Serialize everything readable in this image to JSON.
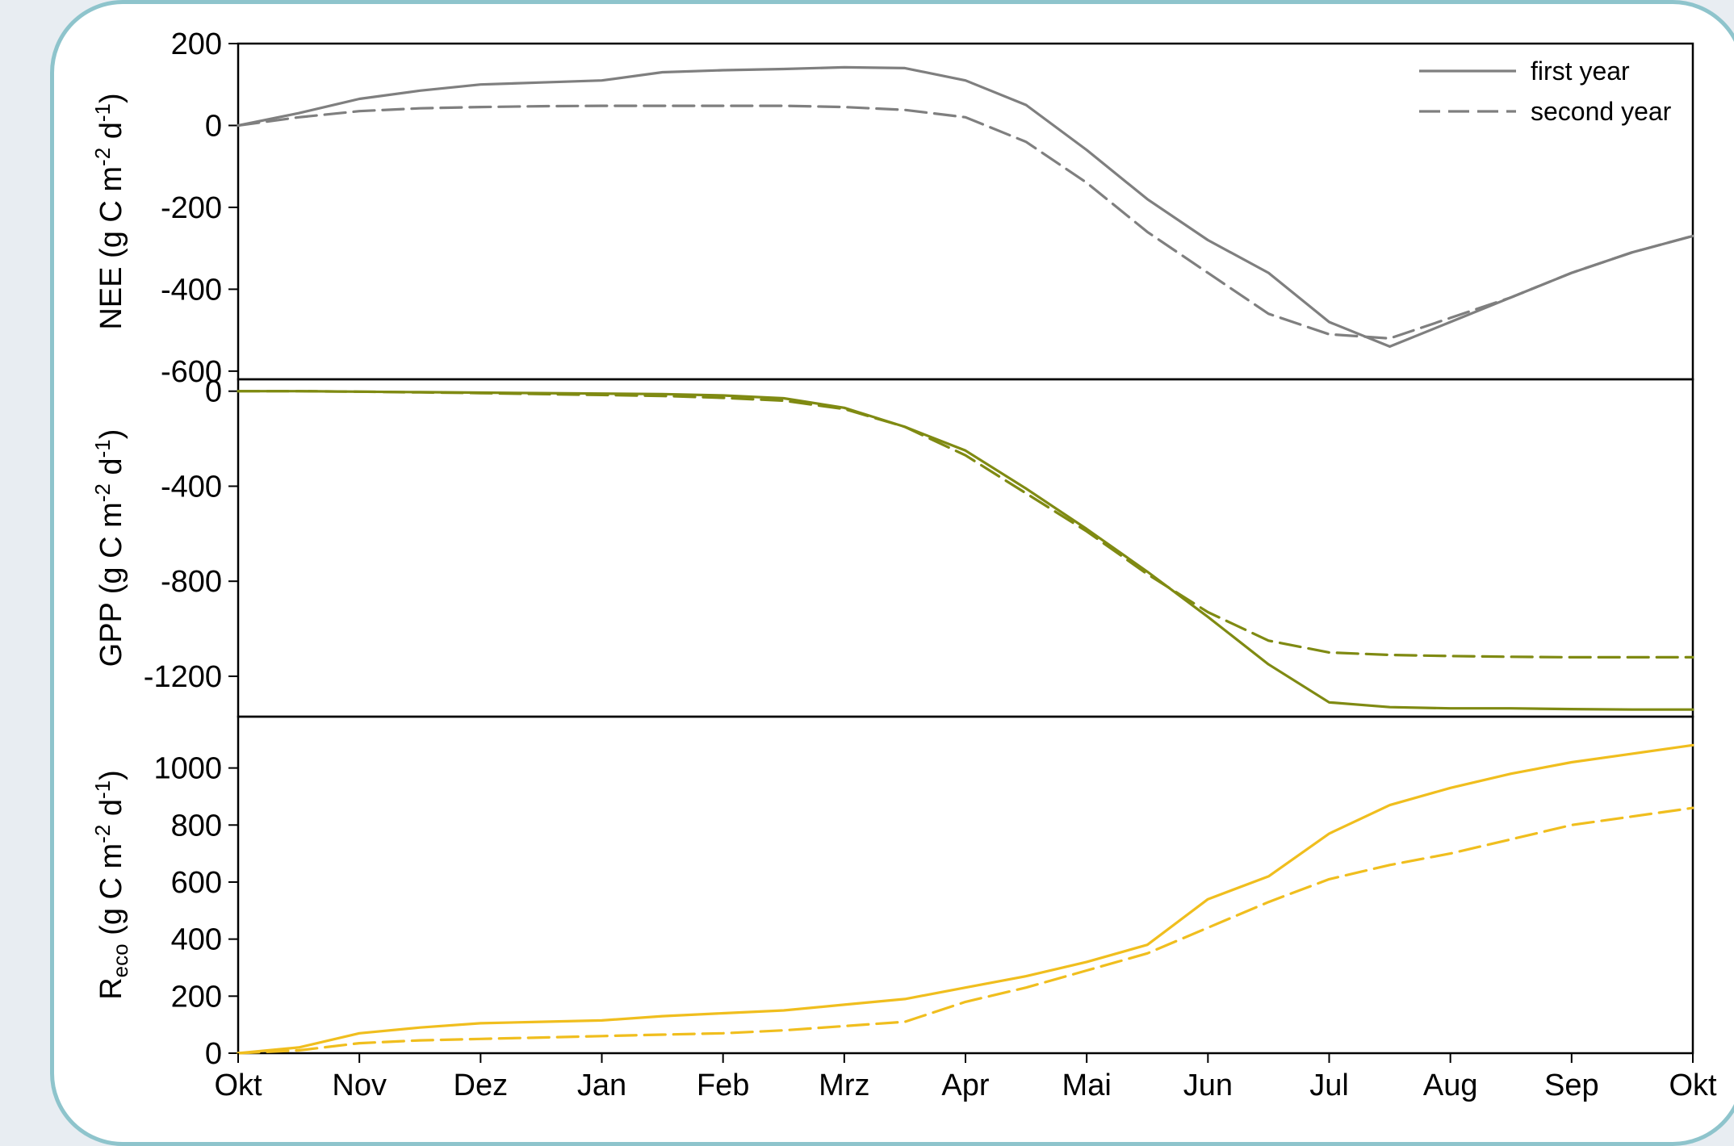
{
  "chart_data": {
    "type": "line",
    "x_categories": [
      "Okt",
      "Nov",
      "Dez",
      "Jan",
      "Feb",
      "Mrz",
      "Apr",
      "Mai",
      "Jun",
      "Jul",
      "Aug",
      "Sep",
      "Okt"
    ],
    "legend": {
      "entries": [
        "first year",
        "second year"
      ],
      "placement": "top-right"
    },
    "panels": [
      {
        "id": "nee",
        "ylabel": {
          "main": "NEE (g C m",
          "sup1": "-2",
          "mid": " d",
          "sup2": "-1",
          "end": ")"
        },
        "ylim": [
          -620,
          200
        ],
        "yticks": [
          200,
          0,
          -200,
          -400,
          -600
        ],
        "color": "#7f7f7f",
        "series": [
          {
            "name": "first year",
            "style": "solid",
            "x": [
              0,
              0.5,
              1,
              1.5,
              2,
              2.5,
              3,
              3.5,
              4,
              4.5,
              5,
              5.5,
              6,
              6.5,
              7,
              7.5,
              8,
              8.5,
              9,
              9.5,
              10,
              10.5,
              11,
              11.5,
              12
            ],
            "y": [
              0,
              30,
              65,
              85,
              100,
              105,
              110,
              130,
              135,
              138,
              142,
              140,
              110,
              50,
              -60,
              -180,
              -280,
              -360,
              -480,
              -540,
              -480,
              -420,
              -360,
              -310,
              -270
            ]
          },
          {
            "name": "second year",
            "style": "dashed",
            "x": [
              0,
              0.5,
              1,
              1.5,
              2,
              2.5,
              3,
              3.5,
              4,
              4.5,
              5,
              5.5,
              6,
              6.5,
              7,
              7.5,
              8,
              8.5,
              9,
              9.5,
              10,
              10.5,
              11,
              11.5,
              12
            ],
            "y": [
              0,
              20,
              35,
              42,
              45,
              47,
              48,
              48,
              48,
              48,
              45,
              38,
              20,
              -40,
              -140,
              -260,
              -360,
              -460,
              -510,
              -520,
              -470,
              -420,
              -360,
              -310,
              -270
            ]
          }
        ]
      },
      {
        "id": "gpp",
        "ylabel": {
          "main": "GPP (g C m",
          "sup1": "-2",
          "mid": " d",
          "sup2": "-1",
          "end": ")"
        },
        "ylim": [
          -1370,
          50
        ],
        "yticks": [
          0,
          -400,
          -800,
          -1200
        ],
        "color": "#7f8a12",
        "series": [
          {
            "name": "first year",
            "style": "solid",
            "x": [
              0,
              0.5,
              1,
              1.5,
              2,
              2.5,
              3,
              3.5,
              4,
              4.5,
              5,
              5.5,
              6,
              6.5,
              7,
              7.5,
              8,
              8.5,
              9,
              9.5,
              10,
              10.5,
              11,
              11.5,
              12
            ],
            "y": [
              0,
              0,
              -2,
              -4,
              -6,
              -8,
              -10,
              -12,
              -18,
              -30,
              -70,
              -150,
              -250,
              -410,
              -580,
              -760,
              -950,
              -1150,
              -1310,
              -1330,
              -1335,
              -1335,
              -1338,
              -1340,
              -1340
            ]
          },
          {
            "name": "second year",
            "style": "dashed",
            "x": [
              0,
              0.5,
              1,
              1.5,
              2,
              2.5,
              3,
              3.5,
              4,
              4.5,
              5,
              5.5,
              6,
              6.5,
              7,
              7.5,
              8,
              8.5,
              9,
              9.5,
              10,
              10.5,
              11,
              11.5,
              12
            ],
            "y": [
              0,
              0,
              -2,
              -5,
              -8,
              -12,
              -16,
              -20,
              -28,
              -40,
              -75,
              -150,
              -270,
              -430,
              -590,
              -770,
              -930,
              -1050,
              -1100,
              -1110,
              -1115,
              -1118,
              -1120,
              -1120,
              -1120
            ]
          }
        ]
      },
      {
        "id": "reco",
        "ylabel": {
          "main": "R",
          "sub": "eco",
          "rest": " (g C m",
          "sup1": "-2",
          "mid": " d",
          "sup2": "-1",
          "end": ")"
        },
        "ylim": [
          0,
          1180
        ],
        "yticks": [
          0,
          200,
          400,
          600,
          800,
          1000
        ],
        "color": "#f0be1e",
        "series": [
          {
            "name": "first year",
            "style": "solid",
            "x": [
              0,
              0.5,
              1,
              1.5,
              2,
              2.5,
              3,
              3.5,
              4,
              4.5,
              5,
              5.5,
              6,
              6.5,
              7,
              7.5,
              8,
              8.5,
              9,
              9.5,
              10,
              10.5,
              11,
              11.5,
              12
            ],
            "y": [
              0,
              20,
              70,
              90,
              105,
              110,
              115,
              130,
              140,
              150,
              170,
              190,
              230,
              270,
              320,
              380,
              540,
              620,
              770,
              870,
              930,
              980,
              1020,
              1050,
              1080
            ]
          },
          {
            "name": "second year",
            "style": "dashed",
            "x": [
              0,
              0.5,
              1,
              1.5,
              2,
              2.5,
              3,
              3.5,
              4,
              4.5,
              5,
              5.5,
              6,
              6.5,
              7,
              7.5,
              8,
              8.5,
              9,
              9.5,
              10,
              10.5,
              11,
              11.5,
              12
            ],
            "y": [
              0,
              10,
              35,
              45,
              50,
              55,
              60,
              65,
              70,
              80,
              95,
              110,
              180,
              230,
              290,
              350,
              440,
              530,
              610,
              660,
              700,
              750,
              800,
              830,
              860
            ]
          }
        ]
      }
    ]
  }
}
